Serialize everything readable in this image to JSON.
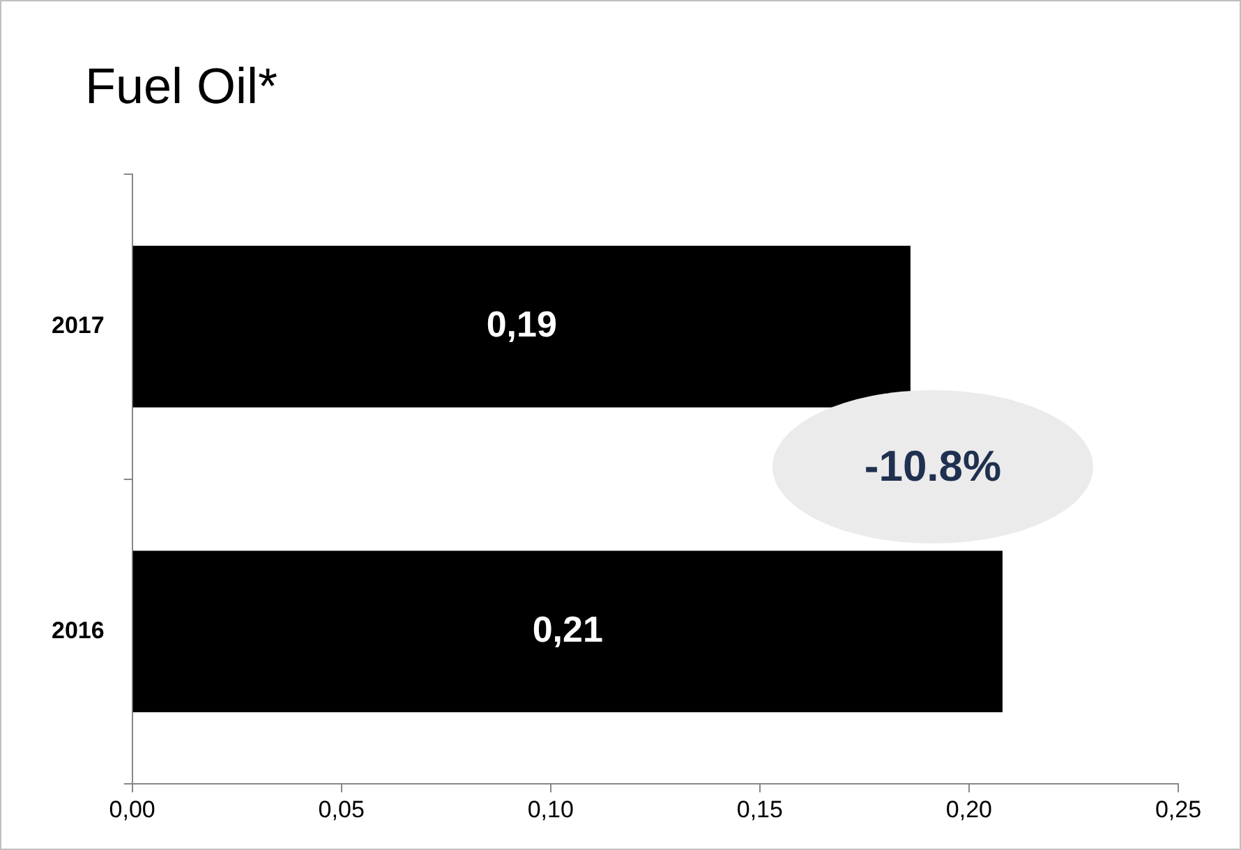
{
  "chart_data": {
    "type": "bar",
    "orientation": "horizontal",
    "title": "Fuel Oil*",
    "categories": [
      "2017",
      "2016"
    ],
    "values": [
      0.186,
      0.208
    ],
    "value_labels": [
      "0,19",
      "0,21"
    ],
    "color": "#000000",
    "xlim": [
      0,
      0.25
    ],
    "xticks": [
      {
        "value": 0,
        "label": "0,00"
      },
      {
        "value": 0.05,
        "label": "0,05"
      },
      {
        "value": 0.1,
        "label": "0,10"
      },
      {
        "value": 0.15,
        "label": "0,15"
      },
      {
        "value": 0.2,
        "label": "0,20"
      },
      {
        "value": 0.25,
        "label": "0,25"
      }
    ],
    "annotations": [
      "-10.8%"
    ]
  }
}
